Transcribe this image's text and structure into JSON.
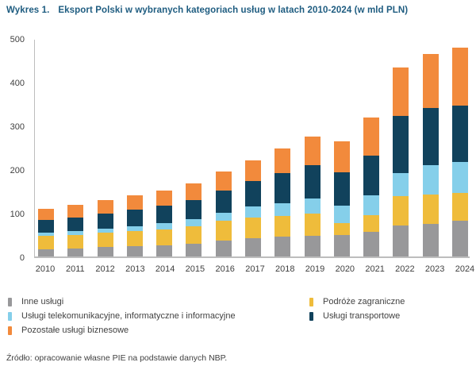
{
  "header": {
    "kicker": "Wykres 1.",
    "title": "Eksport Polski w wybranych kategoriach usług w latach 2010-2024 (w mld PLN)",
    "color": "#1e5c80"
  },
  "chart_data": {
    "type": "bar",
    "stacked": true,
    "title": "Eksport Polski w wybranych kategoriach usług w latach 2010-2024 (w mld PLN)",
    "unit": "mld PLN",
    "categories": [
      "2010",
      "2011",
      "2012",
      "2013",
      "2014",
      "2015",
      "2016",
      "2017",
      "2018",
      "2019",
      "2020",
      "2021",
      "2022",
      "2023",
      "2024"
    ],
    "series": [
      {
        "name": "Inne usługi",
        "color": "#98989a",
        "values": [
          17,
          19,
          21,
          23,
          26,
          30,
          37,
          41,
          45,
          47,
          49,
          57,
          71,
          75,
          82
        ]
      },
      {
        "name": "Podróże zagraniczne",
        "color": "#efbc3b",
        "values": [
          30,
          31,
          33,
          35,
          36,
          40,
          45,
          48,
          48,
          52,
          27,
          38,
          67,
          67,
          64
        ]
      },
      {
        "name": "Usługi telekomunikacyjne, informatyczne i informacyjne",
        "color": "#85cfea",
        "values": [
          8,
          9,
          10,
          12,
          14,
          15,
          18,
          25,
          28,
          34,
          41,
          45,
          53,
          67,
          70
        ]
      },
      {
        "name": "Usługi transportowe",
        "color": "#11425c",
        "values": [
          28,
          31,
          34,
          37,
          40,
          44,
          51,
          58,
          70,
          76,
          76,
          91,
          131,
          131,
          130
        ]
      },
      {
        "name": "Pozostałe usługi biznesowe",
        "color": "#f28a3c",
        "values": [
          26,
          29,
          32,
          33,
          35,
          39,
          44,
          48,
          56,
          65,
          70,
          87,
          110,
          123,
          132
        ]
      }
    ],
    "ylim": [
      0,
      500
    ],
    "yticks": [
      0,
      100,
      200,
      300,
      400,
      500
    ],
    "grid": false,
    "legend_position": "bottom"
  },
  "legend": {
    "columns": [
      [
        {
          "label": "Inne usługi",
          "color": "#98989a"
        },
        {
          "label": "Usługi telekomunikacyjne, informatyczne i informacyjne",
          "color": "#85cfea"
        },
        {
          "label": "Pozostałe usługi biznesowe",
          "color": "#f28a3c"
        }
      ],
      [
        {
          "label": "Podróże zagraniczne",
          "color": "#efbc3b"
        },
        {
          "label": "Usługi transportowe",
          "color": "#11425c"
        }
      ]
    ]
  },
  "source": "Źródło: opracowanie własne PIE na podstawie danych NBP."
}
